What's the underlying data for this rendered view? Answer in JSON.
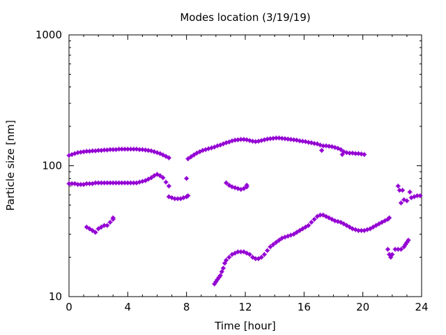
{
  "chart_data": {
    "type": "scatter",
    "title": "Modes location (3/19/19)",
    "xlabel": "Time [hour]",
    "ylabel": "Particle size [nm]",
    "xlim": [
      0,
      24
    ],
    "ylim": [
      10,
      1000
    ],
    "yscale": "log",
    "grid": false,
    "legend": "none",
    "xticks": [
      0,
      4,
      8,
      12,
      16,
      20,
      24
    ],
    "xtick_labels": [
      "0",
      "4",
      "8",
      "12",
      "16",
      "20",
      "24"
    ],
    "yticks": [
      10,
      100,
      1000
    ],
    "ytick_labels": [
      "10",
      "100",
      "1000"
    ],
    "marker_color": "#9400d3",
    "series": [
      {
        "values_note": "",
        "points": [
          [
            0.0,
            120
          ],
          [
            0.2,
            122
          ],
          [
            0.4,
            124
          ],
          [
            0.6,
            126
          ],
          [
            0.8,
            127
          ],
          [
            1.0,
            128
          ],
          [
            1.2,
            129
          ],
          [
            1.4,
            129
          ],
          [
            1.6,
            130
          ],
          [
            1.8,
            130
          ],
          [
            2.0,
            131
          ],
          [
            2.2,
            131
          ],
          [
            2.4,
            132
          ],
          [
            2.6,
            132
          ],
          [
            2.8,
            133
          ],
          [
            3.0,
            133
          ],
          [
            3.2,
            133
          ],
          [
            3.4,
            134
          ],
          [
            3.6,
            134
          ],
          [
            3.8,
            134
          ],
          [
            4.0,
            134
          ],
          [
            4.2,
            134
          ],
          [
            4.4,
            134
          ],
          [
            4.6,
            134
          ],
          [
            4.8,
            133
          ],
          [
            5.0,
            133
          ],
          [
            5.2,
            132
          ],
          [
            5.4,
            131
          ],
          [
            5.6,
            130
          ],
          [
            5.8,
            128
          ],
          [
            6.0,
            126
          ],
          [
            6.2,
            124
          ],
          [
            6.4,
            121
          ],
          [
            6.6,
            118
          ],
          [
            6.8,
            115
          ],
          [
            8.1,
            113
          ],
          [
            8.3,
            117
          ],
          [
            8.5,
            121
          ],
          [
            8.7,
            125
          ],
          [
            8.9,
            128
          ],
          [
            9.1,
            131
          ],
          [
            9.3,
            133
          ],
          [
            9.5,
            135
          ],
          [
            9.7,
            137
          ],
          [
            9.9,
            139
          ],
          [
            10.1,
            142
          ],
          [
            10.3,
            144
          ],
          [
            10.5,
            147
          ],
          [
            10.7,
            150
          ],
          [
            10.9,
            152
          ],
          [
            11.1,
            155
          ],
          [
            11.3,
            157
          ],
          [
            11.5,
            158
          ],
          [
            11.7,
            159
          ],
          [
            11.9,
            159
          ],
          [
            12.1,
            158
          ],
          [
            12.3,
            156
          ],
          [
            12.5,
            154
          ],
          [
            12.7,
            153
          ],
          [
            12.9,
            154
          ],
          [
            13.1,
            156
          ],
          [
            13.3,
            158
          ],
          [
            13.5,
            160
          ],
          [
            13.7,
            161
          ],
          [
            13.9,
            162
          ],
          [
            14.1,
            163
          ],
          [
            14.3,
            163
          ],
          [
            14.5,
            162
          ],
          [
            14.7,
            161
          ],
          [
            14.9,
            160
          ],
          [
            15.1,
            159
          ],
          [
            15.3,
            158
          ],
          [
            15.5,
            157
          ],
          [
            15.7,
            155
          ],
          [
            15.9,
            154
          ],
          [
            16.1,
            153
          ],
          [
            16.3,
            151
          ],
          [
            16.5,
            150
          ],
          [
            16.7,
            148
          ],
          [
            16.9,
            147
          ],
          [
            17.1,
            144
          ],
          [
            17.3,
            142
          ],
          [
            17.5,
            142
          ],
          [
            17.7,
            141
          ],
          [
            17.9,
            140
          ],
          [
            18.1,
            138
          ],
          [
            18.3,
            136
          ],
          [
            18.5,
            133
          ],
          [
            18.7,
            128
          ],
          [
            18.9,
            126
          ],
          [
            19.1,
            125
          ],
          [
            19.3,
            125
          ],
          [
            19.5,
            124
          ],
          [
            19.7,
            124
          ],
          [
            19.9,
            123
          ],
          [
            20.1,
            122
          ],
          [
            17.2,
            131
          ],
          [
            18.6,
            122
          ],
          [
            0.0,
            73
          ],
          [
            0.2,
            73
          ],
          [
            0.4,
            73
          ],
          [
            0.6,
            72
          ],
          [
            0.8,
            72
          ],
          [
            1.0,
            72
          ],
          [
            1.2,
            73
          ],
          [
            1.4,
            73
          ],
          [
            1.6,
            73
          ],
          [
            1.8,
            74
          ],
          [
            2.0,
            74
          ],
          [
            2.2,
            74
          ],
          [
            2.4,
            74
          ],
          [
            2.6,
            74
          ],
          [
            2.8,
            74
          ],
          [
            3.0,
            74
          ],
          [
            3.2,
            74
          ],
          [
            3.4,
            74
          ],
          [
            3.6,
            74
          ],
          [
            3.8,
            74
          ],
          [
            4.0,
            74
          ],
          [
            4.2,
            74
          ],
          [
            4.4,
            74
          ],
          [
            4.6,
            74
          ],
          [
            4.8,
            75
          ],
          [
            5.0,
            76
          ],
          [
            5.2,
            77
          ],
          [
            5.4,
            79
          ],
          [
            5.6,
            81
          ],
          [
            5.8,
            84
          ],
          [
            6.0,
            86
          ],
          [
            6.2,
            84
          ],
          [
            6.4,
            81
          ],
          [
            6.6,
            75
          ],
          [
            6.8,
            70
          ],
          [
            6.8,
            58
          ],
          [
            7.0,
            57
          ],
          [
            7.2,
            56
          ],
          [
            7.4,
            56
          ],
          [
            7.6,
            56
          ],
          [
            7.8,
            57
          ],
          [
            8.0,
            58
          ],
          [
            8.1,
            59
          ],
          [
            8.0,
            80
          ],
          [
            10.7,
            74
          ],
          [
            10.9,
            71
          ],
          [
            11.1,
            69
          ],
          [
            11.3,
            68
          ],
          [
            11.5,
            67
          ],
          [
            11.7,
            66
          ],
          [
            11.9,
            67
          ],
          [
            12.1,
            69
          ],
          [
            12.1,
            71
          ],
          [
            1.2,
            34
          ],
          [
            1.4,
            33
          ],
          [
            1.6,
            32
          ],
          [
            1.8,
            31
          ],
          [
            2.0,
            33
          ],
          [
            2.2,
            34
          ],
          [
            2.4,
            35
          ],
          [
            2.6,
            35
          ],
          [
            2.8,
            37
          ],
          [
            3.0,
            39
          ],
          [
            3.0,
            40
          ],
          [
            9.9,
            12.5
          ],
          [
            10.0,
            13
          ],
          [
            10.1,
            13.5
          ],
          [
            10.2,
            14
          ],
          [
            10.3,
            14.5
          ],
          [
            10.4,
            15.5
          ],
          [
            10.5,
            16.5
          ],
          [
            10.6,
            18
          ],
          [
            10.7,
            19
          ],
          [
            10.9,
            20
          ],
          [
            11.1,
            21
          ],
          [
            11.3,
            21.5
          ],
          [
            11.5,
            22
          ],
          [
            11.7,
            22
          ],
          [
            11.9,
            22
          ],
          [
            12.1,
            21.5
          ],
          [
            12.3,
            21
          ],
          [
            12.5,
            20
          ],
          [
            12.7,
            19.5
          ],
          [
            12.9,
            19.5
          ],
          [
            13.1,
            20
          ],
          [
            13.3,
            21
          ],
          [
            13.5,
            22.5
          ],
          [
            13.7,
            24
          ],
          [
            13.9,
            25
          ],
          [
            14.1,
            26
          ],
          [
            14.3,
            27
          ],
          [
            14.5,
            28
          ],
          [
            14.7,
            28.5
          ],
          [
            14.9,
            29
          ],
          [
            15.1,
            29.5
          ],
          [
            15.3,
            30
          ],
          [
            15.5,
            31
          ],
          [
            15.7,
            32
          ],
          [
            15.9,
            33
          ],
          [
            16.1,
            34
          ],
          [
            16.3,
            35
          ],
          [
            16.5,
            37
          ],
          [
            16.7,
            39
          ],
          [
            16.9,
            41
          ],
          [
            17.1,
            42
          ],
          [
            17.3,
            42
          ],
          [
            17.5,
            41
          ],
          [
            17.7,
            40
          ],
          [
            17.9,
            39
          ],
          [
            18.1,
            38
          ],
          [
            18.3,
            37.5
          ],
          [
            18.5,
            37
          ],
          [
            18.7,
            36
          ],
          [
            18.9,
            35
          ],
          [
            19.1,
            34
          ],
          [
            19.3,
            33
          ],
          [
            19.5,
            32.5
          ],
          [
            19.7,
            32
          ],
          [
            19.9,
            32
          ],
          [
            20.1,
            32
          ],
          [
            20.3,
            32.5
          ],
          [
            20.5,
            33
          ],
          [
            20.7,
            34
          ],
          [
            20.9,
            35
          ],
          [
            21.1,
            36
          ],
          [
            21.3,
            37
          ],
          [
            21.5,
            38
          ],
          [
            21.7,
            39
          ],
          [
            21.8,
            40
          ],
          [
            21.7,
            23
          ],
          [
            21.8,
            21
          ],
          [
            21.9,
            20
          ],
          [
            22.0,
            21
          ],
          [
            22.2,
            23
          ],
          [
            22.4,
            23
          ],
          [
            22.6,
            23
          ],
          [
            22.8,
            24
          ],
          [
            22.9,
            25
          ],
          [
            23.0,
            26
          ],
          [
            23.1,
            27
          ],
          [
            22.4,
            70
          ],
          [
            22.5,
            65
          ],
          [
            22.7,
            65
          ],
          [
            22.6,
            52
          ],
          [
            22.8,
            55
          ],
          [
            23.0,
            54
          ],
          [
            23.2,
            63
          ],
          [
            23.3,
            57
          ],
          [
            23.5,
            58
          ],
          [
            23.7,
            59
          ],
          [
            23.9,
            59
          ]
        ]
      }
    ]
  }
}
